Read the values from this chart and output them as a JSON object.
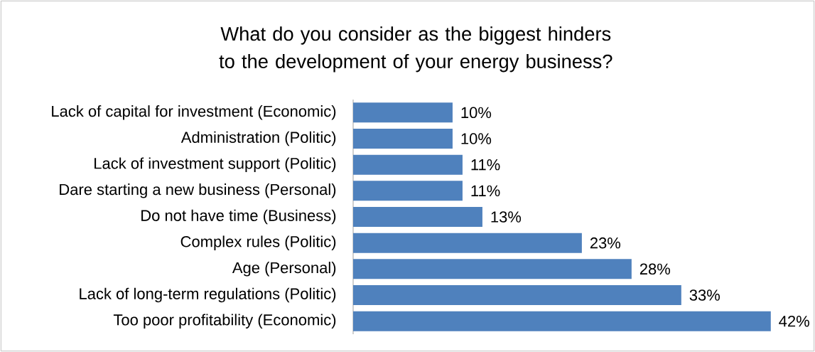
{
  "chart_data": {
    "type": "bar",
    "orientation": "horizontal",
    "title": "What do you consider as the biggest hinders to the development of your energy business?",
    "categories": [
      "Lack of capital for investment (Economic)",
      "Administration (Politic)",
      "Lack of investment support (Politic)",
      "Dare starting a new business (Personal)",
      "Do not have time (Business)",
      "Complex rules (Politic)",
      "Age (Personal)",
      "Lack of long-term regulations (Politic)",
      "Too poor profitability (Economic)"
    ],
    "values": [
      10,
      10,
      11,
      11,
      13,
      23,
      28,
      33,
      42
    ],
    "value_labels": [
      "10%",
      "10%",
      "11%",
      "11%",
      "13%",
      "23%",
      "28%",
      "33%",
      "42%"
    ],
    "color": "#4f81bd"
  }
}
